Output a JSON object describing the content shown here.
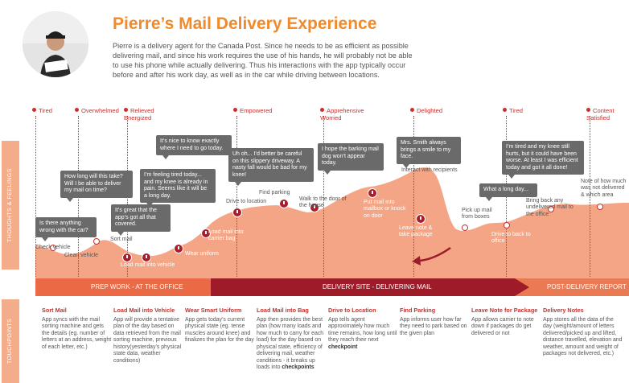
{
  "header": {
    "title": "Pierre’s Mail Delivery Experience",
    "intro": "Pierre is a delivery agent for the Canada Post. Since he needs to be as efficient as possible delivering mail, and since his work requires the use of his hands, he will probably not be able to use his phone while actually delivering. Thus his interactions with the app typically occur before and after his work day, as well as in the car while driving between locations."
  },
  "side_labels": {
    "thoughts": "THOUGHTS & FEELINGS",
    "touchpoints": "TOUCHPOINTS"
  },
  "moods": [
    {
      "label": "Tired"
    },
    {
      "label": "Overwhelmed"
    },
    {
      "label": "Relieved\nEnergized"
    },
    {
      "label": "Empowered"
    },
    {
      "label": "Apprehensive\nWorried"
    },
    {
      "label": "Delighted"
    },
    {
      "label": "Tired"
    },
    {
      "label": "Content\nSatisfied"
    }
  ],
  "bubbles": [
    {
      "text": "Is there anything wrong with the car?"
    },
    {
      "text": "How long will this take? Will I be able to deliver my mail on time?"
    },
    {
      "text": "It’s great that the app’s got all that covered."
    },
    {
      "text": "I’m feeling tired today... and my knee is already in pain. Seems like it will be a long day."
    },
    {
      "text": "It’s nice to know exactly where I need to go today."
    },
    {
      "text": "Uh oh... I’d better be careful on this slippery driveway. A nasty fall would be bad for my knee!"
    },
    {
      "text": "I hope the barking mail dog won’t appear today."
    },
    {
      "text": "Mrs. Smith always brings a smile to my face."
    },
    {
      "text": "What a long day..."
    },
    {
      "text": "I’m tired and my knee still hurts, but it could have been worse. At least I was efficient today and got it all done!"
    }
  ],
  "steps": [
    {
      "label": "Check vehicle"
    },
    {
      "label": "Clean vehicle"
    },
    {
      "label": "Sort mail"
    },
    {
      "label": "Load mail into vehicle"
    },
    {
      "label": "Wear uniform"
    },
    {
      "label": "Load mail into carrier bag"
    },
    {
      "label": "Drive to location"
    },
    {
      "label": "Find parking"
    },
    {
      "label": "Walk to the door of the house"
    },
    {
      "label": "Put mail into mailbox or knock on door"
    },
    {
      "label": "Interact with recipients"
    },
    {
      "label": "Leave note & take package"
    },
    {
      "label": "Pick up mail from boxes"
    },
    {
      "label": "Drive to back to office"
    },
    {
      "label": "Bring back any undelivered mail to the office"
    },
    {
      "label": "Note of how much was not delivered & which area"
    }
  ],
  "phases": [
    {
      "label": "PREP WORK - AT THE OFFICE"
    },
    {
      "label": "DELIVERY SITE - DELIVERING MAIL"
    },
    {
      "label": "POST-DELIVERY REPORT"
    }
  ],
  "touchpoints": [
    {
      "title": "Sort Mail",
      "text": "App syncs with the mail sorting machine and gets the details (eg. number of letters at an address, weight of each letter, etc.)",
      "bold": ""
    },
    {
      "title": "Load Mail into Vehicle",
      "text": "App will provide a tentative plan of the day based on data retrieved from the mail sorting machine, previous history(yesterday’s physical state data, weather conditions)",
      "bold": ""
    },
    {
      "title": "Wear Smart Uniform",
      "text": "App gets today’s current physical state (eg. tense muscles around knee) and finalizes the plan for the day",
      "bold": ""
    },
    {
      "title": "Load Mail into Bag",
      "text": "App then provides the best plan (how many loads and how much to carry for each load) for the day based on physical state, efficiency of delivering mail, weather conditions - it breaks up loads into ",
      "bold": "checkpoints"
    },
    {
      "title": "Drive to Location",
      "text": "App tells agent approximately how much time remains, how long until they reach their next ",
      "bold": "checkpoint"
    },
    {
      "title": "Find Parking",
      "text": "App informs user how far they need to park based on the given plan",
      "bold": ""
    },
    {
      "title": "Leave Note for Package",
      "text": "App allows carrier to note down if packages do get delivered or not",
      "bold": ""
    },
    {
      "title": "Delivery Notes",
      "text": "App stores all the data of the day (weight/amount of letters delivered/picked up and lifted, distance travelled, elevation and weather, amount and weight of packages not delivered, etc.)",
      "bold": ""
    }
  ],
  "colors": {
    "accent": "#f08a2a",
    "journey_fill": "#f4a585",
    "phase_dark": "#9e1b2a",
    "mood_red": "#c9302c"
  }
}
